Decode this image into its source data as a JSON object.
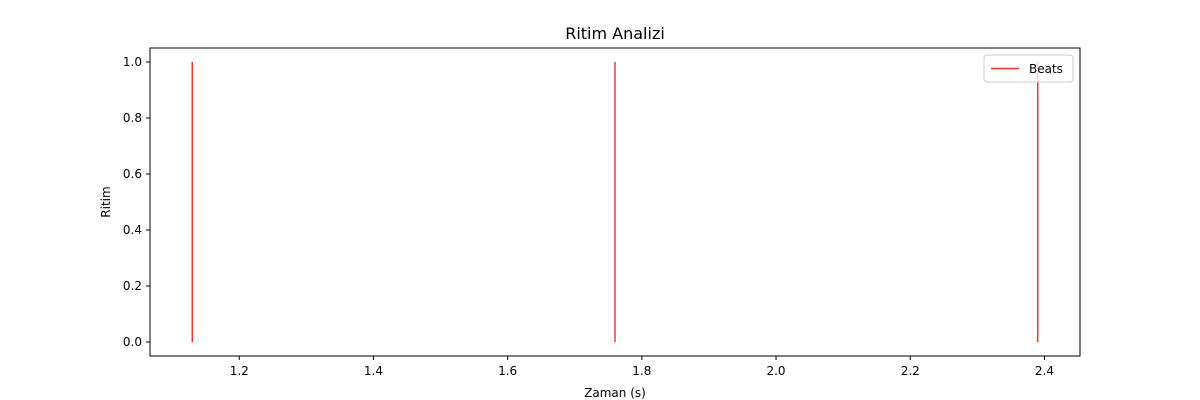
{
  "chart_data": {
    "type": "bar",
    "title": "Ritim Analizi",
    "xlabel": "Zaman (s)",
    "ylabel": "Ritim",
    "xlim": [
      1.067,
      2.453
    ],
    "ylim": [
      -0.05,
      1.05
    ],
    "xticks": [
      1.2,
      1.4,
      1.6,
      1.8,
      2.0,
      2.2,
      2.4
    ],
    "xtick_labels": [
      "1.2",
      "1.4",
      "1.6",
      "1.8",
      "2.0",
      "2.2",
      "2.4"
    ],
    "yticks": [
      0.0,
      0.2,
      0.4,
      0.6,
      0.8,
      1.0
    ],
    "ytick_labels": [
      "0.0",
      "0.2",
      "0.4",
      "0.6",
      "0.8",
      "1.0"
    ],
    "grid": false,
    "legend_position": "top-right",
    "series": [
      {
        "name": "Beats",
        "color": "#ff0000",
        "style": "vertical-lines",
        "x": [
          1.13,
          1.76,
          2.39
        ],
        "values": [
          1.0,
          1.0,
          1.0
        ]
      }
    ]
  }
}
